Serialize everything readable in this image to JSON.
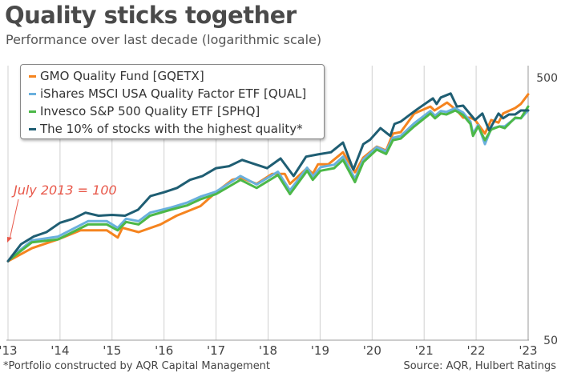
{
  "header": {
    "title": "Quality sticks together",
    "subtitle": "Performance over last decade (logarithmic scale)"
  },
  "footer": {
    "footnote": "*Portfolio constructed by AQR Capital Management",
    "source": "Source: AQR, Hulbert Ratings"
  },
  "chart_data": {
    "type": "line",
    "title": "Quality sticks together",
    "subtitle": "Performance over last decade (logarithmic scale)",
    "xlabel": "",
    "ylabel": "",
    "y_scale": "log",
    "ylim": [
      50,
      500
    ],
    "xlim": [
      2013,
      2023
    ],
    "x_ticks": [
      2013,
      2014,
      2015,
      2016,
      2017,
      2018,
      2019,
      2020,
      2021,
      2022,
      2023
    ],
    "x_tick_labels": [
      "'13",
      "'14",
      "'15",
      "'16",
      "'17",
      "'18",
      "'19",
      "'20",
      "'21",
      "'22",
      "'23"
    ],
    "y_ticks": [
      50,
      500
    ],
    "y_tick_labels": [
      "50",
      "500"
    ],
    "y_axis_side": "right",
    "grid": "vertical",
    "legend_placement": "top-left",
    "annotation": {
      "text": "July 2013 = 100",
      "x": 2013.0,
      "y": 100,
      "color": "#e8584a"
    },
    "series": [
      {
        "name": "GMO Quality Fund [GQETX]",
        "color": "#f5841f",
        "x": [
          2013.0,
          2013.46,
          2013.96,
          2014.39,
          2014.9,
          2015.11,
          2015.2,
          2015.51,
          2015.93,
          2016.24,
          2016.7,
          2017.0,
          2017.31,
          2017.47,
          2017.78,
          2018.08,
          2018.32,
          2018.42,
          2018.75,
          2018.86,
          2018.96,
          2019.16,
          2019.44,
          2019.67,
          2019.83,
          2020.09,
          2020.27,
          2020.4,
          2020.55,
          2020.81,
          2021.12,
          2021.2,
          2021.32,
          2021.44,
          2021.63,
          2021.75,
          2021.89,
          2021.98,
          2022.17,
          2022.29,
          2022.43,
          2022.52,
          2022.75,
          2022.86,
          2023.0
        ],
        "y": [
          100,
          112,
          121,
          131,
          131,
          123,
          134,
          129,
          138,
          149,
          162,
          183,
          204,
          208,
          197,
          215,
          215,
          197,
          226,
          215,
          234,
          234,
          260,
          218,
          248,
          273,
          264,
          306,
          310,
          365,
          388,
          375,
          388,
          402,
          375,
          352,
          352,
          345,
          306,
          345,
          337,
          365,
          383,
          397,
          432
        ]
      },
      {
        "name": "iShares MSCI USA Quality Factor ETF [QUAL]",
        "color": "#6ab0dd",
        "x": [
          2013.05,
          2013.46,
          2013.96,
          2014.54,
          2014.9,
          2015.11,
          2015.27,
          2015.51,
          2015.73,
          2016.13,
          2016.44,
          2016.7,
          2017.0,
          2017.47,
          2017.78,
          2018.19,
          2018.42,
          2018.75,
          2018.86,
          2019.01,
          2019.27,
          2019.44,
          2019.67,
          2019.83,
          2020.09,
          2020.27,
          2020.4,
          2020.55,
          2020.81,
          2021.12,
          2021.21,
          2021.32,
          2021.43,
          2021.6,
          2021.75,
          2021.89,
          2021.94,
          2022.04,
          2022.17,
          2022.29,
          2022.45,
          2022.55,
          2022.75,
          2022.86,
          2023.0
        ],
        "y": [
          103,
          120,
          124,
          142,
          142,
          134,
          145,
          142,
          153,
          160,
          167,
          176,
          184,
          211,
          196,
          219,
          186,
          227,
          210,
          228,
          233,
          250,
          206,
          244,
          272,
          262,
          295,
          300,
          335,
          373,
          358,
          373,
          370,
          383,
          368,
          340,
          306,
          330,
          279,
          320,
          326,
          326,
          350,
          350,
          375
        ]
      },
      {
        "name": "Invesco S&P 500 Quality ETF [SPHQ]",
        "color": "#4cb848",
        "x": [
          2013.05,
          2013.46,
          2013.96,
          2014.54,
          2014.9,
          2015.11,
          2015.27,
          2015.51,
          2015.73,
          2016.13,
          2016.44,
          2016.7,
          2017.0,
          2017.47,
          2017.78,
          2018.19,
          2018.42,
          2018.75,
          2018.86,
          2019.01,
          2019.27,
          2019.44,
          2019.67,
          2019.83,
          2020.09,
          2020.27,
          2020.4,
          2020.55,
          2020.81,
          2021.12,
          2021.21,
          2021.32,
          2021.43,
          2021.6,
          2021.75,
          2021.89,
          2021.94,
          2022.04,
          2022.17,
          2022.29,
          2022.45,
          2022.55,
          2022.75,
          2022.86,
          2023.0
        ],
        "y": [
          102,
          118,
          121,
          138,
          138,
          131,
          141,
          138,
          149,
          157,
          163,
          172,
          180,
          204,
          190,
          213,
          180,
          221,
          204,
          221,
          226,
          243,
          200,
          238,
          266,
          256,
          289,
          293,
          326,
          365,
          350,
          365,
          362,
          375,
          360,
          333,
          300,
          326,
          289,
          317,
          326,
          321,
          352,
          350,
          388
        ]
      },
      {
        "name": "The 10% of stocks with the highest quality*",
        "color": "#1f5e73",
        "x": [
          2013.0,
          2013.25,
          2013.49,
          2013.74,
          2014.0,
          2014.25,
          2014.49,
          2014.74,
          2015.0,
          2015.25,
          2015.5,
          2015.74,
          2016.0,
          2016.25,
          2016.5,
          2016.74,
          2017.0,
          2017.25,
          2017.5,
          2017.75,
          2017.98,
          2018.24,
          2018.49,
          2018.73,
          2018.96,
          2019.21,
          2019.44,
          2019.64,
          2019.83,
          2019.96,
          2020.16,
          2020.35,
          2020.43,
          2020.55,
          2020.86,
          2021.17,
          2021.24,
          2021.32,
          2021.51,
          2021.63,
          2021.75,
          2021.89,
          2021.98,
          2022.12,
          2022.25,
          2022.43,
          2022.52,
          2022.63,
          2022.75,
          2022.86,
          2023.0
        ],
        "y": [
          100,
          116,
          124,
          129,
          140,
          145,
          153,
          149,
          150,
          149,
          157,
          177,
          183,
          190,
          204,
          211,
          226,
          230,
          243,
          234,
          226,
          246,
          211,
          250,
          255,
          260,
          283,
          223,
          279,
          290,
          321,
          300,
          333,
          340,
          378,
          417,
          397,
          420,
          435,
          388,
          391,
          362,
          345,
          365,
          315,
          365,
          350,
          362,
          362,
          375,
          375
        ]
      }
    ]
  }
}
